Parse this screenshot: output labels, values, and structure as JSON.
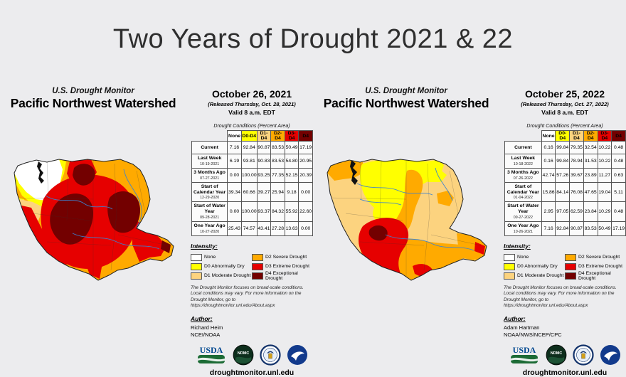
{
  "slide": {
    "title": "Two Years of Drought 2021 & 22"
  },
  "colors": {
    "none": "#FFFFFF",
    "d0": "#FFFF00",
    "d1": "#FCD37F",
    "d2": "#FFAA00",
    "d3": "#E60000",
    "d4": "#730000"
  },
  "table": {
    "caption": "Drought Conditions (Percent Area)",
    "columns": [
      {
        "label": "None",
        "color_key": "none"
      },
      {
        "label": "D0-D4",
        "color_key": "d0"
      },
      {
        "label": "D1-D4",
        "color_key": "d1"
      },
      {
        "label": "D2-D4",
        "color_key": "d2"
      },
      {
        "label": "D3-D4",
        "color_key": "d3"
      },
      {
        "label": "D4",
        "color_key": "d4"
      }
    ]
  },
  "legend": {
    "heading": "Intensity:",
    "items": [
      {
        "color_key": "none",
        "label": "None"
      },
      {
        "color_key": "d0",
        "label": "D0 Abnormally Dry"
      },
      {
        "color_key": "d1",
        "label": "D1 Moderate Drought"
      },
      {
        "color_key": "d2",
        "label": "D2 Severe Drought"
      },
      {
        "color_key": "d3",
        "label": "D3 Extreme Drought"
      },
      {
        "color_key": "d4",
        "label": "D4 Exceptional Drought"
      }
    ]
  },
  "disclaimer": "The Drought Monitor focuses on broad-scale conditions. Local conditions may vary. For more information on the Drought Monitor, go to https://droughtmonitor.unl.edu/About.aspx",
  "author_heading": "Author:",
  "footer_url": "droughtmonitor.unl.edu",
  "logos": {
    "usda": "USDA",
    "ndmc": "NDMC"
  },
  "panels": [
    {
      "monitor_label": "U.S. Drought Monitor",
      "region": "Pacific Northwest Watershed",
      "date": "October 26, 2021",
      "released": "(Released Thursday, Oct. 28, 2021)",
      "valid": "Valid 8 a.m. EDT",
      "author_name": "Richard Heim",
      "author_org": "NCEI/NOAA",
      "rows": [
        {
          "label": "Current",
          "date": "",
          "values": [
            "7.16",
            "92.84",
            "90.87",
            "83.53",
            "50.49",
            "17.19"
          ]
        },
        {
          "label": "Last Week",
          "date": "10-19-2021",
          "values": [
            "6.19",
            "93.81",
            "90.83",
            "83.53",
            "54.80",
            "20.95"
          ]
        },
        {
          "label": "3 Months Ago",
          "date": "07-27-2021",
          "values": [
            "0.00",
            "100.00",
            "93.25",
            "77.35",
            "52.15",
            "20.39"
          ]
        },
        {
          "label": "Start of Calendar Year",
          "date": "12-29-2020",
          "values": [
            "39.34",
            "60.66",
            "39.27",
            "25.94",
            "9.18",
            "0.00"
          ]
        },
        {
          "label": "Start of Water Year",
          "date": "09-28-2021",
          "values": [
            "0.00",
            "100.00",
            "93.37",
            "84.32",
            "55.92",
            "22.60"
          ]
        },
        {
          "label": "One Year Ago",
          "date": "10-27-2020",
          "values": [
            "25.43",
            "74.57",
            "43.41",
            "27.28",
            "13.63",
            "0.00"
          ]
        }
      ]
    },
    {
      "monitor_label": "U.S. Drought Monitor",
      "region": "Pacific Northwest Watershed",
      "date": "October 25, 2022",
      "released": "(Released Thursday, Oct. 27, 2022)",
      "valid": "Valid 8 a.m. EDT",
      "author_name": "Adam Hartman",
      "author_org": "NOAA/NWS/NCEP/CPC",
      "rows": [
        {
          "label": "Current",
          "date": "",
          "values": [
            "0.16",
            "99.84",
            "79.35",
            "32.54",
            "10.22",
            "0.48"
          ]
        },
        {
          "label": "Last Week",
          "date": "10-18-2022",
          "values": [
            "0.16",
            "99.84",
            "78.94",
            "31.53",
            "10.22",
            "0.48"
          ]
        },
        {
          "label": "3 Months Ago",
          "date": "07-26-2022",
          "values": [
            "42.74",
            "57.26",
            "39.67",
            "23.89",
            "11.27",
            "0.63"
          ]
        },
        {
          "label": "Start of Calendar Year",
          "date": "01-04-2022",
          "values": [
            "15.86",
            "84.14",
            "76.08",
            "47.65",
            "19.04",
            "5.11"
          ]
        },
        {
          "label": "Start of Water Year",
          "date": "09-27-2022",
          "values": [
            "2.95",
            "97.05",
            "62.59",
            "23.84",
            "10.29",
            "0.48"
          ]
        },
        {
          "label": "One Year Ago",
          "date": "10-26-2021",
          "values": [
            "7.16",
            "92.84",
            "90.87",
            "83.53",
            "50.49",
            "17.19"
          ]
        }
      ]
    }
  ]
}
